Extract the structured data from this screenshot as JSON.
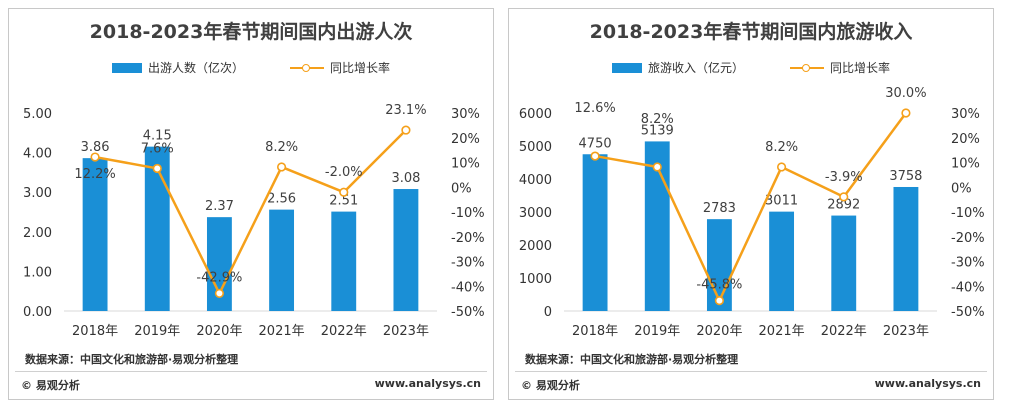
{
  "chart_data": [
    {
      "type": "bar",
      "title": "2018-2023年春节期间国内出游人次",
      "categories": [
        "2018年",
        "2019年",
        "2020年",
        "2021年",
        "2022年",
        "2023年"
      ],
      "series": [
        {
          "name": "出游人数（亿次）",
          "values": [
            3.86,
            4.15,
            2.37,
            2.56,
            2.51,
            3.08
          ],
          "labels": [
            "3.86",
            "4.15",
            "2.37",
            "2.56",
            "2.51",
            "3.08"
          ]
        },
        {
          "name": "同比增长率",
          "type": "line",
          "axis": "right",
          "values": [
            12.2,
            7.6,
            -42.9,
            8.2,
            -2.0,
            23.1
          ],
          "labels": [
            "12.2%",
            "7.6%",
            "-42.9%",
            "8.2%",
            "-2.0%",
            "23.1%"
          ]
        }
      ],
      "ylim": [
        0,
        5
      ],
      "yticks": [
        "0.00",
        "1.00",
        "2.00",
        "3.00",
        "4.00",
        "5.00"
      ],
      "y2lim": [
        -50,
        30
      ],
      "y2ticks": [
        "-50%",
        "-40%",
        "-30%",
        "-20%",
        "-10%",
        "0%",
        "10%",
        "20%",
        "30%"
      ],
      "grid": false,
      "legend": "top"
    },
    {
      "type": "bar",
      "title": "2018-2023年春节期间国内旅游收入",
      "categories": [
        "2018年",
        "2019年",
        "2020年",
        "2021年",
        "2022年",
        "2023年"
      ],
      "series": [
        {
          "name": "旅游收入（亿元）",
          "values": [
            4750,
            5139,
            2783,
            3011,
            2892,
            3758
          ],
          "labels": [
            "4750",
            "5139",
            "2783",
            "3011",
            "2892",
            "3758"
          ]
        },
        {
          "name": "同比增长率",
          "type": "line",
          "axis": "right",
          "values": [
            12.6,
            8.2,
            -45.8,
            8.2,
            -3.9,
            30.0
          ],
          "labels": [
            "12.6%",
            "8.2%",
            "-45.8%",
            "8.2%",
            "-3.9%",
            "30.0%"
          ]
        }
      ],
      "ylim": [
        0,
        6000
      ],
      "yticks": [
        "0",
        "1000",
        "2000",
        "3000",
        "4000",
        "5000",
        "6000"
      ],
      "y2lim": [
        -50,
        30
      ],
      "y2ticks": [
        "-50%",
        "-40%",
        "-30%",
        "-20%",
        "-10%",
        "0%",
        "10%",
        "20%",
        "30%"
      ],
      "grid": false,
      "legend": "top"
    }
  ],
  "colors": {
    "bar": "#1a8fd6",
    "line": "#f5a01a"
  },
  "footer": {
    "source": "数据来源：中国文化和旅游部·易观分析整理",
    "brand": "© 易观分析",
    "site": "www.analysys.cn"
  }
}
